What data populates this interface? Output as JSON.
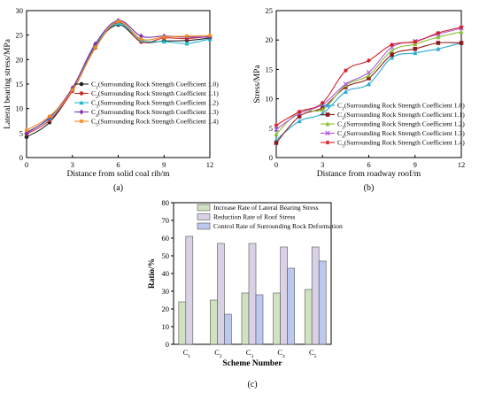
{
  "captions": {
    "a": "(a)",
    "b": "(b)",
    "c": "(c)"
  },
  "chart_data": [
    {
      "type": "line",
      "panel": "(a)",
      "xlabel": "Distance from solid coal rib/m",
      "ylabel": "Lateral bearing stress/MPa",
      "xlim": [
        0,
        12
      ],
      "ylim": [
        0,
        30
      ],
      "xticks": [
        "0",
        "3",
        "6",
        "9",
        "12"
      ],
      "yticks": [
        "0",
        "5",
        "10",
        "15",
        "20",
        "25",
        "30"
      ],
      "legend_position": "middle-right",
      "series": [
        {
          "name": "C",
          "sub": "1",
          "suffix": "(Surrounding Rock Strength Coefficient 1.0)",
          "color": "#222222",
          "marker": "circle",
          "x": [
            0,
            1.5,
            3,
            4.5,
            6,
            7.5,
            9,
            10.5,
            12
          ],
          "y": [
            4.2,
            7.2,
            13.8,
            22.8,
            27.1,
            23.7,
            23.8,
            23.9,
            24.4
          ]
        },
        {
          "name": "C",
          "sub": "2",
          "suffix": "(Surrounding Rock Strength Coefficient 1.1)",
          "color": "#d12a2a",
          "marker": "circle",
          "x": [
            0,
            1.5,
            3,
            4.5,
            6,
            7.5,
            9,
            10.5,
            12
          ],
          "y": [
            4.8,
            7.6,
            13.6,
            22.4,
            27.6,
            23.6,
            24.4,
            24.3,
            24.7
          ]
        },
        {
          "name": "C",
          "sub": "3",
          "suffix": "(Surrounding Rock Strength Coefficient 1.2)",
          "color": "#1fb8c9",
          "marker": "triangle",
          "x": [
            0,
            1.5,
            3,
            4.5,
            6,
            7.5,
            9,
            10.5,
            12
          ],
          "y": [
            5.2,
            8.0,
            14.0,
            23.0,
            27.4,
            24.0,
            23.7,
            23.3,
            24.2
          ]
        },
        {
          "name": "C",
          "sub": "4",
          "suffix": "(Surrounding Rock Strength Coefficient 1.3)",
          "color": "#7b2fb5",
          "marker": "diamond",
          "x": [
            0,
            1.5,
            3,
            4.5,
            6,
            7.5,
            9,
            10.5,
            12
          ],
          "y": [
            5.0,
            8.2,
            14.2,
            23.2,
            28.0,
            24.8,
            24.8,
            24.6,
            24.6
          ]
        },
        {
          "name": "C",
          "sub": "5",
          "suffix": "(Surrounding Rock Strength Coefficient 1.4)",
          "color": "#f08a1c",
          "marker": "star",
          "x": [
            0,
            1.5,
            3,
            4.5,
            6,
            7.5,
            9,
            10.5,
            12
          ],
          "y": [
            5.6,
            8.4,
            13.8,
            22.5,
            27.8,
            24.2,
            24.6,
            24.8,
            24.9
          ]
        }
      ]
    },
    {
      "type": "line",
      "panel": "(b)",
      "xlabel": "Distance from roadway roof/m",
      "ylabel": "Stress/MPa",
      "xlim": [
        0,
        12
      ],
      "ylim": [
        0,
        25
      ],
      "xticks": [
        "0",
        "3",
        "6",
        "9",
        "12"
      ],
      "yticks": [
        "0",
        "5",
        "10",
        "15",
        "20",
        "25"
      ],
      "legend_position": "bottom-right",
      "series": [
        {
          "name": "C",
          "sub": "1",
          "suffix": "(Surrounding Rock Strength Coefficient 1.0)",
          "color": "#2aa8d8",
          "marker": "triangle",
          "x": [
            0,
            1.5,
            3,
            4.5,
            6,
            7.5,
            9,
            10.5,
            12
          ],
          "y": [
            3.0,
            6.2,
            7.5,
            11.2,
            12.5,
            17.0,
            17.8,
            18.5,
            19.5
          ]
        },
        {
          "name": "C",
          "sub": "2",
          "suffix": "(Surrounding Rock Strength Coefficient 1.1)",
          "color": "#8b1a1a",
          "marker": "square",
          "x": [
            0,
            1.5,
            3,
            4.5,
            6,
            7.5,
            9,
            10.5,
            12
          ],
          "y": [
            2.5,
            7.0,
            8.5,
            12.0,
            13.5,
            17.5,
            18.5,
            19.5,
            19.5
          ]
        },
        {
          "name": "C",
          "sub": "3",
          "suffix": "(Surrounding Rock Strength Coefficient 1.2)",
          "color": "#8bbf3a",
          "marker": "triangle",
          "x": [
            0,
            1.5,
            3,
            4.5,
            6,
            7.5,
            9,
            10.5,
            12
          ],
          "y": [
            4.0,
            7.8,
            8.2,
            12.3,
            14.0,
            18.2,
            19.3,
            20.5,
            21.4
          ]
        },
        {
          "name": "C",
          "sub": "4",
          "suffix": "(Surrounding Rock Strength Coefficient 1.3)",
          "color": "#b05ad6",
          "marker": "x",
          "x": [
            0,
            1.5,
            3,
            4.5,
            6,
            7.5,
            9,
            10.5,
            12
          ],
          "y": [
            4.8,
            7.5,
            9.0,
            12.5,
            14.5,
            18.8,
            19.8,
            21.0,
            22.0
          ]
        },
        {
          "name": "C",
          "sub": "5",
          "suffix": "(Surrounding Rock Strength Coefficient 1.4)",
          "color": "#d4202a",
          "marker": "star",
          "x": [
            0,
            1.5,
            3,
            4.5,
            6,
            7.5,
            9,
            10.5,
            12
          ],
          "y": [
            5.5,
            7.8,
            9.3,
            14.8,
            16.5,
            19.2,
            19.7,
            21.2,
            22.2
          ]
        }
      ]
    },
    {
      "type": "bar",
      "panel": "(c)",
      "xlabel": "Scheme Number",
      "ylabel": "Ratio/%",
      "ylim": [
        0,
        80
      ],
      "yticks": [
        "0",
        "10",
        "20",
        "30",
        "40",
        "50",
        "60",
        "70",
        "80"
      ],
      "categories": [
        {
          "name": "C",
          "sub": "1"
        },
        {
          "name": "C",
          "sub": "2"
        },
        {
          "name": "C",
          "sub": "3"
        },
        {
          "name": "C",
          "sub": "4"
        },
        {
          "name": "C",
          "sub": "5"
        }
      ],
      "legend_position": "top-center",
      "series": [
        {
          "name": "Increase Rate of Lateral Bearing Stress",
          "color": "#cfe3c1",
          "values": [
            24,
            25,
            29,
            29,
            31
          ]
        },
        {
          "name": "Reduction Rate of Roof Stress",
          "color": "#d9d2e6",
          "values": [
            61,
            57,
            57,
            55,
            55
          ]
        },
        {
          "name": "Control Rate of Surrounding Rock Deformation",
          "color": "#bcc8ee",
          "values": [
            null,
            17,
            28,
            43,
            47
          ]
        }
      ]
    }
  ]
}
